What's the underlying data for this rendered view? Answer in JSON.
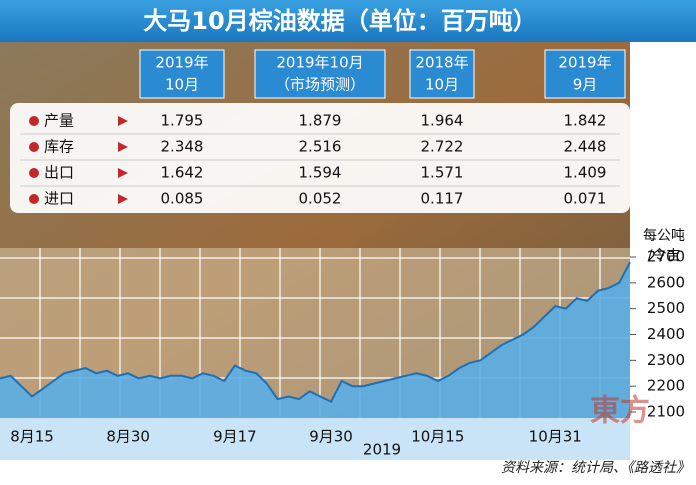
{
  "title": "大马10月棕油数据（单位：百万吨）",
  "table": {
    "columns": [
      [
        "2019年",
        "10月"
      ],
      [
        "2019年10月",
        "（市场预测）"
      ],
      [
        "2018年",
        "10月"
      ],
      [
        "2019年",
        "9月"
      ]
    ],
    "rows": [
      {
        "label": "产量",
        "values": [
          "1.795",
          "1.879",
          "1.964",
          "1.842"
        ]
      },
      {
        "label": "库存",
        "values": [
          "2.348",
          "2.516",
          "2.722",
          "2.448"
        ]
      },
      {
        "label": "出口",
        "values": [
          "1.642",
          "1.594",
          "1.571",
          "1.409"
        ]
      },
      {
        "label": "进口",
        "values": [
          "0.085",
          "0.052",
          "0.117",
          "0.071"
        ]
      }
    ]
  },
  "chart_data": {
    "type": "area",
    "y_label": [
      "每公吨",
      "/令吉"
    ],
    "x_label": "2019",
    "categories": [
      null,
      null,
      null,
      "8月15",
      null,
      null,
      null,
      null,
      null,
      null,
      null,
      null,
      "8月30",
      null,
      null,
      null,
      null,
      null,
      null,
      null,
      null,
      null,
      "9月17",
      null,
      null,
      null,
      null,
      null,
      null,
      null,
      null,
      "9月30",
      null,
      null,
      null,
      null,
      null,
      null,
      null,
      null,
      null,
      "10月15",
      null,
      null,
      null,
      null,
      null,
      null,
      null,
      null,
      null,
      null,
      "10月31",
      null,
      null,
      null,
      null,
      null,
      null,
      null
    ],
    "values": [
      2230,
      2240,
      2200,
      2160,
      2190,
      2220,
      2250,
      2260,
      2270,
      2250,
      2260,
      2240,
      2250,
      2230,
      2240,
      2230,
      2240,
      2240,
      2230,
      2250,
      2240,
      2220,
      2280,
      2260,
      2250,
      2210,
      2150,
      2160,
      2150,
      2180,
      2160,
      2140,
      2220,
      2200,
      2200,
      2210,
      2220,
      2230,
      2240,
      2250,
      2240,
      2220,
      2240,
      2270,
      2290,
      2300,
      2330,
      2360,
      2380,
      2400,
      2430,
      2470,
      2510,
      2500,
      2540,
      2530,
      2570,
      2580,
      2600,
      2680
    ],
    "color": "#5aaee6",
    "ylim": [
      2100,
      2700
    ],
    "yticks": [
      2100,
      2200,
      2300,
      2400,
      2500,
      2600,
      2700
    ]
  },
  "source": "资料来源：统计局、《路透社》",
  "watermark": "東方"
}
